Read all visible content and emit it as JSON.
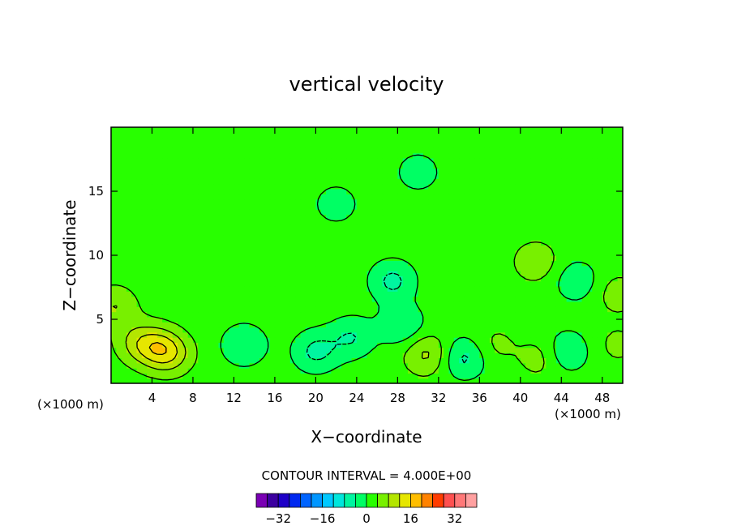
{
  "chart_data": {
    "type": "heatmap",
    "title": "vertical velocity",
    "xlabel": "X−coordinate",
    "ylabel": "Z−coordinate",
    "x_units_left": "(×1000 m)",
    "x_units_right": "(×1000 m)",
    "xlim": [
      0,
      50
    ],
    "ylim": [
      0,
      20
    ],
    "x_ticks": [
      4,
      8,
      12,
      16,
      20,
      24,
      28,
      32,
      36,
      40,
      44,
      48
    ],
    "y_ticks": [
      5,
      10,
      15
    ],
    "contour_interval_text": "CONTOUR INTERVAL = 4.000E+00",
    "colorbar": {
      "levels": [
        -36,
        -32,
        -28,
        -24,
        -20,
        -16,
        -12,
        -8,
        -4,
        0,
        4,
        8,
        12,
        16,
        20,
        24,
        28,
        32,
        36
      ],
      "colors": [
        "#7a00b4",
        "#3c00a0",
        "#1e00c8",
        "#0028f0",
        "#0064ff",
        "#0096ff",
        "#00c8ff",
        "#00e6dc",
        "#00f5a0",
        "#00ff64",
        "#28ff00",
        "#78f000",
        "#b4e600",
        "#e6e600",
        "#ffbe00",
        "#ff8200",
        "#ff3c00",
        "#ff5050",
        "#ff7878",
        "#ffa0a0"
      ],
      "tick_labels": [
        "−32",
        "−16",
        "0",
        "16",
        "32"
      ],
      "tick_values": [
        -32,
        -16,
        0,
        16,
        32
      ]
    },
    "field": {
      "background_value": 2,
      "features": [
        {
          "x": 0.3,
          "z": 6.0,
          "value": 8
        },
        {
          "x": 2.6,
          "z": 3.2,
          "value": 8
        },
        {
          "x": 4.5,
          "z": 2.8,
          "value": 10
        },
        {
          "x": 5.8,
          "z": 2.3,
          "value": 9
        },
        {
          "x": 13.0,
          "z": 3.0,
          "value": -4
        },
        {
          "x": 20.0,
          "z": 2.5,
          "value": -5
        },
        {
          "x": 23.5,
          "z": 3.6,
          "value": -4
        },
        {
          "x": 27.5,
          "z": 8.0,
          "value": -5
        },
        {
          "x": 28.5,
          "z": 4.5,
          "value": -4
        },
        {
          "x": 30.8,
          "z": 2.3,
          "value": 9
        },
        {
          "x": 34.5,
          "z": 2.0,
          "value": -5
        },
        {
          "x": 37.5,
          "z": 3.0,
          "value": 5
        },
        {
          "x": 41.5,
          "z": 9.5,
          "value": 7
        },
        {
          "x": 42.0,
          "z": 2.0,
          "value": 6
        },
        {
          "x": 44.5,
          "z": 2.5,
          "value": -4
        },
        {
          "x": 45.5,
          "z": 8.0,
          "value": -3
        },
        {
          "x": 49.5,
          "z": 7.0,
          "value": 6
        },
        {
          "x": 49.5,
          "z": 3.0,
          "value": 5
        },
        {
          "x": 22.0,
          "z": 14.0,
          "value": -2
        },
        {
          "x": 30.0,
          "z": 16.5,
          "value": -2
        }
      ]
    }
  }
}
